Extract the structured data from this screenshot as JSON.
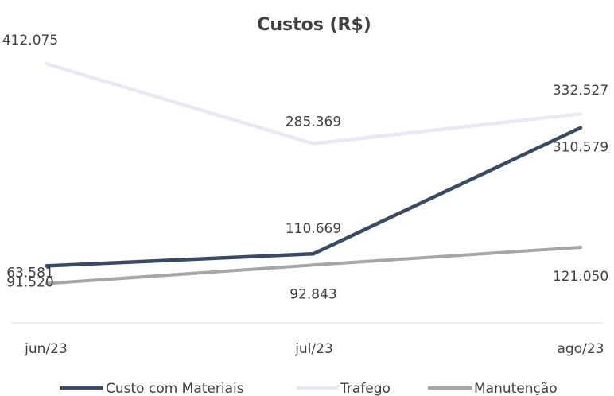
{
  "chart_data": {
    "type": "line",
    "title": "Custos (R$)",
    "xlabel": "",
    "ylabel": "",
    "categories": [
      "jun/23",
      "jul/23",
      "ago/23"
    ],
    "ylim": [
      0,
      450000
    ],
    "grid": false,
    "legend_position": "bottom",
    "series": [
      {
        "name": "Custo com Materiais",
        "color": "#3b4a63",
        "values": [
          91520,
          110669,
          310579
        ],
        "labels": [
          "91.520",
          "110.669",
          "310.579"
        ]
      },
      {
        "name": "Trafego",
        "color": "#e9e9f3",
        "values": [
          412075,
          285369,
          332527
        ],
        "labels": [
          "412.075",
          "285.369",
          "332.527"
        ]
      },
      {
        "name": "Manutenção",
        "color": "#a6a6a6",
        "values": [
          63581,
          92843,
          121050
        ],
        "labels": [
          "63.581",
          "92.843",
          "121.050"
        ]
      }
    ]
  }
}
